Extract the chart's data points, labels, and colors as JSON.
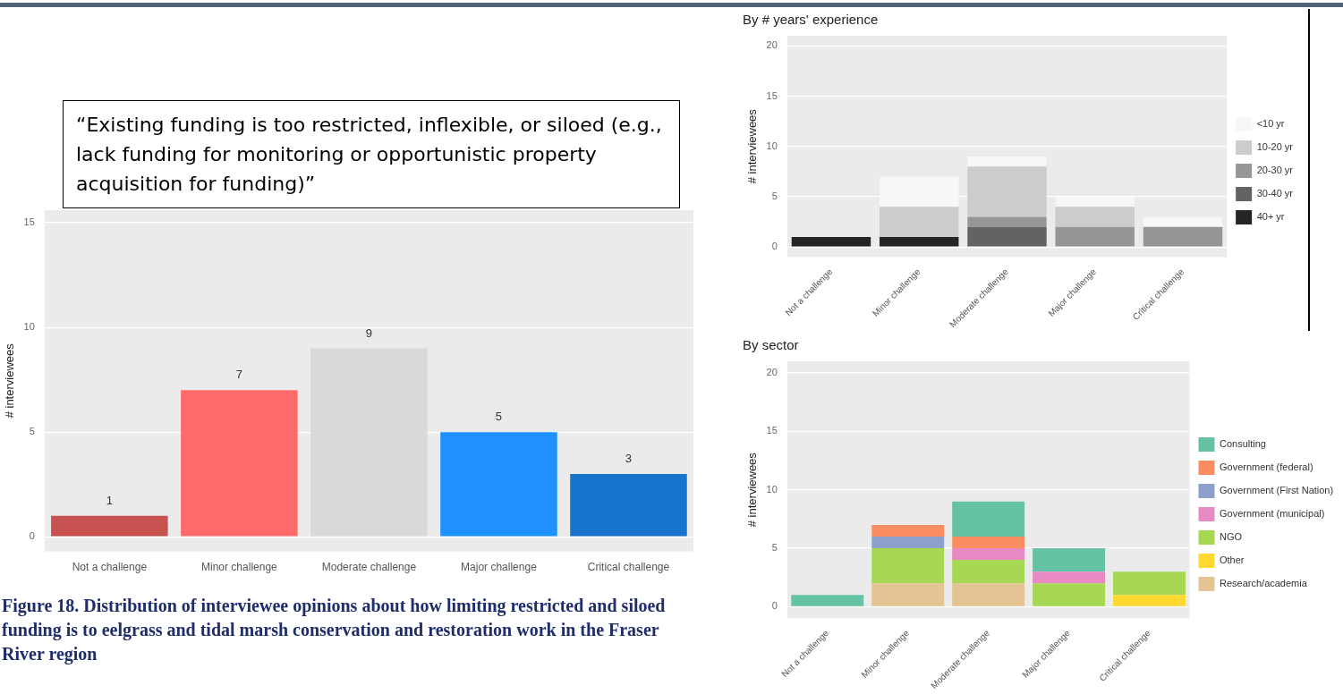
{
  "chart_data": [
    {
      "type": "bar",
      "ylabel": "# interviewees",
      "categories": [
        "Not a challenge",
        "Minor challenge",
        "Moderate challenge",
        "Major challenge",
        "Critical challenge"
      ],
      "values": [
        1,
        7,
        9,
        5,
        3
      ],
      "colors": [
        "#c85250",
        "#ff6b6b",
        "#d9d9d9",
        "#1e90ff",
        "#1874cd"
      ],
      "data_labels": true,
      "ylim": [
        -0.7,
        15.6
      ],
      "yticks": [
        0,
        5,
        10,
        15
      ],
      "grid": "y",
      "legend": false,
      "annotations": [
        "“Existing funding is too restricted, inflexible, or siloed (e.g., lack funding for monitoring or opportunistic property acquisition for funding)”",
        "Figure 18. Distribution of interviewee opinions about how limiting restricted and siloed funding is to eelgrass and tidal marsh conservation and restoration work in the Fraser River region"
      ]
    },
    {
      "type": "bar",
      "title": "By # years' experience",
      "ylabel": "# interviewees",
      "stacked": true,
      "categories": [
        "Not a challenge",
        "Minor challenge",
        "Moderate challenge",
        "Major challenge",
        "Critical challenge"
      ],
      "ylim": [
        -1,
        21
      ],
      "yticks": [
        0,
        5,
        10,
        15,
        20
      ],
      "grid": "y",
      "legend": "right",
      "series": [
        {
          "name": "40+ yr",
          "color": "#252525",
          "values": [
            1,
            1,
            0,
            0,
            0
          ]
        },
        {
          "name": "30-40 yr",
          "color": "#636363",
          "values": [
            0,
            0,
            2,
            0,
            0
          ]
        },
        {
          "name": "20-30 yr",
          "color": "#969696",
          "values": [
            0,
            0,
            1,
            2,
            2
          ]
        },
        {
          "name": "10-20 yr",
          "color": "#cccccc",
          "values": [
            0,
            3,
            5,
            2,
            0
          ]
        },
        {
          "name": "<10 yr",
          "color": "#f7f7f7",
          "values": [
            0,
            3,
            1,
            1,
            1
          ]
        }
      ]
    },
    {
      "type": "bar",
      "title": "By sector",
      "ylabel": "# interviewees",
      "stacked": true,
      "categories": [
        "Not a challenge",
        "Minor challenge",
        "Moderate challenge",
        "Major challenge",
        "Critical challenge"
      ],
      "ylim": [
        -1,
        21
      ],
      "yticks": [
        0,
        5,
        10,
        15,
        20
      ],
      "grid": "y",
      "legend": "right",
      "series": [
        {
          "name": "Research/academia",
          "color": "#e5c494",
          "values": [
            0,
            2,
            2,
            0,
            0
          ]
        },
        {
          "name": "Other",
          "color": "#ffd92f",
          "values": [
            0,
            0,
            0,
            0,
            1
          ]
        },
        {
          "name": "NGO",
          "color": "#a6d854",
          "values": [
            0,
            3,
            2,
            2,
            2
          ]
        },
        {
          "name": "Government (municipal)",
          "color": "#e78ac3",
          "values": [
            0,
            0,
            1,
            1,
            0
          ]
        },
        {
          "name": "Government (First Nation)",
          "color": "#8da0cb",
          "values": [
            0,
            1,
            0,
            0,
            0
          ]
        },
        {
          "name": "Government (federal)",
          "color": "#fc8d62",
          "values": [
            0,
            1,
            1,
            0,
            0
          ]
        },
        {
          "name": "Consulting",
          "color": "#66c2a5",
          "values": [
            1,
            0,
            3,
            2,
            0
          ]
        }
      ]
    }
  ]
}
